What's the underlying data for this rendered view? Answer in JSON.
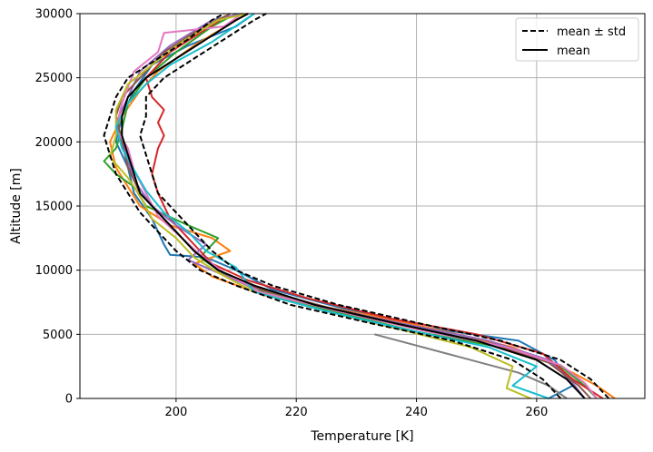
{
  "chart_data": {
    "type": "line",
    "title": "",
    "xlabel": "Temperature [K]",
    "ylabel": "Altitude [m]",
    "xlim": [
      184,
      278
    ],
    "ylim": [
      0,
      30000
    ],
    "xticks": [
      200,
      220,
      240,
      260
    ],
    "yticks": [
      0,
      5000,
      10000,
      15000,
      20000,
      25000,
      30000
    ],
    "grid": true,
    "legend_position": "top-right",
    "legend": [
      {
        "label": "mean ± std",
        "style": "dashed",
        "color": "#000000"
      },
      {
        "label": "mean",
        "style": "solid",
        "color": "#000000"
      }
    ],
    "series": [
      {
        "color": "#1f77b4",
        "points": [
          [
            262,
            0
          ],
          [
            266,
            1000
          ],
          [
            263,
            3000
          ],
          [
            257,
            4500
          ],
          [
            242,
            5500
          ],
          [
            228,
            7000
          ],
          [
            216,
            8500
          ],
          [
            210,
            10000
          ],
          [
            205,
            11000
          ],
          [
            199,
            11200
          ],
          [
            198,
            12000
          ],
          [
            196,
            14000
          ],
          [
            193,
            16000
          ],
          [
            192,
            18000
          ],
          [
            190,
            20000
          ],
          [
            191,
            22000
          ],
          [
            193,
            24000
          ],
          [
            196,
            26000
          ],
          [
            202,
            27500
          ],
          [
            210,
            29000
          ],
          [
            213,
            30000
          ]
        ]
      },
      {
        "color": "#ff7f0e",
        "points": [
          [
            273,
            0
          ],
          [
            270,
            1000
          ],
          [
            266,
            2000
          ],
          [
            256,
            4000
          ],
          [
            245,
            5200
          ],
          [
            232,
            6500
          ],
          [
            215,
            8000
          ],
          [
            206,
            9500
          ],
          [
            203,
            10500
          ],
          [
            209,
            11500
          ],
          [
            206,
            12500
          ],
          [
            199,
            13500
          ],
          [
            194,
            15000
          ],
          [
            192,
            16500
          ],
          [
            190,
            18000
          ],
          [
            189,
            20000
          ],
          [
            191,
            22000
          ],
          [
            194,
            24000
          ],
          [
            197,
            25500
          ],
          [
            203,
            27500
          ],
          [
            210,
            29500
          ],
          [
            212,
            30000
          ]
        ]
      },
      {
        "color": "#2ca02c",
        "points": [
          [
            270,
            0
          ],
          [
            268,
            1000
          ],
          [
            264,
            2500
          ],
          [
            254,
            4000
          ],
          [
            240,
            5200
          ],
          [
            226,
            6800
          ],
          [
            213,
            8500
          ],
          [
            207,
            10000
          ],
          [
            204,
            11000
          ],
          [
            207,
            12500
          ],
          [
            202,
            13500
          ],
          [
            195,
            15000
          ],
          [
            193,
            16500
          ],
          [
            190,
            17500
          ],
          [
            188,
            18500
          ],
          [
            190,
            19500
          ],
          [
            191,
            21000
          ],
          [
            192,
            23000
          ],
          [
            195,
            25000
          ],
          [
            200,
            27000
          ],
          [
            206,
            29000
          ],
          [
            210,
            30000
          ]
        ]
      },
      {
        "color": "#d62728",
        "points": [
          [
            271,
            0
          ],
          [
            266,
            1500
          ],
          [
            261,
            3500
          ],
          [
            250,
            5000
          ],
          [
            236,
            6200
          ],
          [
            222,
            7800
          ],
          [
            212,
            9200
          ],
          [
            206,
            10500
          ],
          [
            203,
            12000
          ],
          [
            199,
            14000
          ],
          [
            197,
            16000
          ],
          [
            196,
            17500
          ],
          [
            197,
            19500
          ],
          [
            198,
            20500
          ],
          [
            197,
            21500
          ],
          [
            198,
            22500
          ],
          [
            196,
            23500
          ],
          [
            195,
            25000
          ],
          [
            199,
            27000
          ],
          [
            204,
            28500
          ],
          [
            209,
            30000
          ]
        ]
      },
      {
        "color": "#9467bd",
        "points": [
          [
            268,
            0
          ],
          [
            266,
            1200
          ],
          [
            262,
            3000
          ],
          [
            252,
            4500
          ],
          [
            238,
            5800
          ],
          [
            224,
            7200
          ],
          [
            212,
            8800
          ],
          [
            206,
            10000
          ],
          [
            202,
            10800
          ],
          [
            205,
            12000
          ],
          [
            200,
            13500
          ],
          [
            196,
            15000
          ],
          [
            193,
            17000
          ],
          [
            192,
            18500
          ],
          [
            191,
            20000
          ],
          [
            190,
            21500
          ],
          [
            192,
            23500
          ],
          [
            194,
            25500
          ],
          [
            199,
            27500
          ],
          [
            206,
            29500
          ],
          [
            211,
            30000
          ]
        ]
      },
      {
        "color": "#8c564b",
        "points": [
          [
            269,
            0
          ],
          [
            267,
            1000
          ],
          [
            262,
            2800
          ],
          [
            253,
            4200
          ],
          [
            240,
            5500
          ],
          [
            226,
            7000
          ],
          [
            214,
            8500
          ],
          [
            207,
            10000
          ],
          [
            203,
            11500
          ],
          [
            200,
            13000
          ],
          [
            197,
            14500
          ],
          [
            194,
            16000
          ],
          [
            192,
            18000
          ],
          [
            191,
            20000
          ],
          [
            190,
            22000
          ],
          [
            191,
            23500
          ],
          [
            194,
            25000
          ],
          [
            198,
            27000
          ],
          [
            204,
            28800
          ],
          [
            209,
            30000
          ]
        ]
      },
      {
        "color": "#e377c2",
        "points": [
          [
            270,
            0
          ],
          [
            268,
            1200
          ],
          [
            264,
            2600
          ],
          [
            255,
            4000
          ],
          [
            241,
            5300
          ],
          [
            227,
            6800
          ],
          [
            214,
            8300
          ],
          [
            208,
            9800
          ],
          [
            204,
            11200
          ],
          [
            201,
            12500
          ],
          [
            197,
            14200
          ],
          [
            195,
            16000
          ],
          [
            193,
            17800
          ],
          [
            192,
            19500
          ],
          [
            190,
            21000
          ],
          [
            191,
            23000
          ],
          [
            193,
            25500
          ],
          [
            197,
            27000
          ],
          [
            198,
            28500
          ],
          [
            208,
            29000
          ],
          [
            211,
            30000
          ]
        ]
      },
      {
        "color": "#7f7f7f",
        "points": [
          [
            265,
            0
          ],
          [
            262,
            1000
          ],
          [
            257,
            2000
          ],
          [
            245,
            3500
          ],
          [
            233,
            5000
          ]
        ]
      },
      {
        "color": "#bcbd22",
        "points": [
          [
            259,
            0
          ],
          [
            255,
            800
          ],
          [
            256,
            2500
          ],
          [
            249,
            4000
          ],
          [
            238,
            5300
          ],
          [
            225,
            6800
          ],
          [
            213,
            8300
          ],
          [
            207,
            9800
          ],
          [
            203,
            11000
          ],
          [
            200,
            12500
          ],
          [
            196,
            14000
          ],
          [
            194,
            15800
          ],
          [
            192,
            17200
          ],
          [
            189,
            18800
          ],
          [
            190,
            20500
          ],
          [
            190,
            22500
          ],
          [
            192,
            24500
          ],
          [
            196,
            26000
          ],
          [
            201,
            27800
          ],
          [
            207,
            29500
          ],
          [
            212,
            30000
          ]
        ]
      },
      {
        "color": "#17becf",
        "points": [
          [
            262,
            0
          ],
          [
            256,
            1000
          ],
          [
            260,
            2500
          ],
          [
            252,
            4000
          ],
          [
            239,
            5300
          ],
          [
            225,
            6800
          ],
          [
            213,
            8300
          ],
          [
            210,
            10200
          ],
          [
            205,
            11500
          ],
          [
            202,
            13000
          ],
          [
            198,
            14500
          ],
          [
            195,
            16200
          ],
          [
            193,
            17800
          ],
          [
            191,
            19500
          ],
          [
            190,
            21200
          ],
          [
            192,
            23000
          ],
          [
            195,
            24500
          ],
          [
            199,
            26000
          ],
          [
            206,
            27800
          ],
          [
            213,
            30000
          ]
        ]
      }
    ],
    "mean": [
      [
        268,
        0
      ],
      [
        265,
        1500
      ],
      [
        260,
        3000
      ],
      [
        250,
        4500
      ],
      [
        237,
        5800
      ],
      [
        223,
        7300
      ],
      [
        213,
        8800
      ],
      [
        207,
        10000
      ],
      [
        203,
        11500
      ],
      [
        200,
        13000
      ],
      [
        197,
        14500
      ],
      [
        194,
        16000
      ],
      [
        193,
        17500
      ],
      [
        192,
        19000
      ],
      [
        191,
        20500
      ],
      [
        191,
        22000
      ],
      [
        192,
        23500
      ],
      [
        195,
        25000
      ],
      [
        200,
        26500
      ],
      [
        205,
        28000
      ],
      [
        210,
        29500
      ],
      [
        212,
        30000
      ]
    ],
    "mean_minus_std": [
      [
        264,
        0
      ],
      [
        261,
        1500
      ],
      [
        256,
        3000
      ],
      [
        246,
        4500
      ],
      [
        233,
        5800
      ],
      [
        219,
        7300
      ],
      [
        210,
        8800
      ],
      [
        204,
        10000
      ],
      [
        200,
        11500
      ],
      [
        197,
        13000
      ],
      [
        194,
        14500
      ],
      [
        192,
        16000
      ],
      [
        190,
        17500
      ],
      [
        189,
        19000
      ],
      [
        188,
        20500
      ],
      [
        189,
        22000
      ],
      [
        190,
        23500
      ],
      [
        192,
        25000
      ],
      [
        197,
        26500
      ],
      [
        202,
        28000
      ],
      [
        206,
        29500
      ],
      [
        208,
        30000
      ]
    ],
    "mean_plus_std": [
      [
        272,
        0
      ],
      [
        269,
        1500
      ],
      [
        264,
        3000
      ],
      [
        254,
        4500
      ],
      [
        241,
        5800
      ],
      [
        227,
        7300
      ],
      [
        216,
        8800
      ],
      [
        210,
        10000
      ],
      [
        206,
        11500
      ],
      [
        203,
        13000
      ],
      [
        200,
        14500
      ],
      [
        197,
        16000
      ],
      [
        196,
        17500
      ],
      [
        195,
        19000
      ],
      [
        194,
        20500
      ],
      [
        195,
        22000
      ],
      [
        195,
        23500
      ],
      [
        198,
        25000
      ],
      [
        203,
        26500
      ],
      [
        208,
        28000
      ],
      [
        213,
        29500
      ],
      [
        215,
        30000
      ]
    ]
  }
}
